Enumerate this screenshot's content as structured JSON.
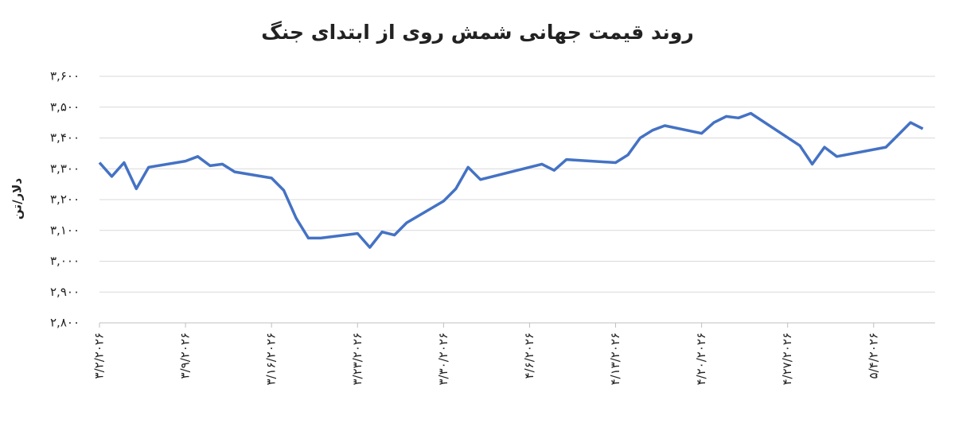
{
  "chart_data": {
    "type": "line",
    "title": "روند قیمت جهانی شمش روی از ابتدای جنگ",
    "y_label": "دلار/تن",
    "x": [
      "2026-03-02",
      "2026-03-03",
      "2026-03-04",
      "2026-03-05",
      "2026-03-06",
      "2026-03-09",
      "2026-03-10",
      "2026-03-11",
      "2026-03-12",
      "2026-03-13",
      "2026-03-16",
      "2026-03-17",
      "2026-03-18",
      "2026-03-19",
      "2026-03-20",
      "2026-03-23",
      "2026-03-24",
      "2026-03-25",
      "2026-03-26",
      "2026-03-27",
      "2026-03-30",
      "2026-03-31",
      "2026-04-01",
      "2026-04-02",
      "2026-04-07",
      "2026-04-08",
      "2026-04-09",
      "2026-04-13",
      "2026-04-14",
      "2026-04-15",
      "2026-04-16",
      "2026-04-17",
      "2026-04-20",
      "2026-04-21",
      "2026-04-22",
      "2026-04-23",
      "2026-04-24",
      "2026-04-28",
      "2026-04-29",
      "2026-04-30",
      "2026-05-01",
      "2026-05-05",
      "2026-05-06",
      "2026-05-07",
      "2026-05-08"
    ],
    "series": [
      {
        "color": "#4472c4",
        "values": [
          3320,
          3275,
          3320,
          3235,
          3305,
          3325,
          3340,
          3310,
          3315,
          3290,
          3270,
          3230,
          3140,
          3075,
          3075,
          3090,
          3045,
          3095,
          3085,
          3125,
          3195,
          3235,
          3305,
          3265,
          3315,
          3295,
          3330,
          3320,
          3345,
          3400,
          3425,
          3440,
          3415,
          3450,
          3470,
          3465,
          3480,
          3375,
          3315,
          3370,
          3340,
          3370,
          3410,
          3450,
          3430
        ]
      }
    ],
    "xlim": [
      "2026-03-02",
      "2026-05-09"
    ],
    "xticks": [
      {
        "value": "2026-03-02",
        "label": "۳/۲/۲۰۲۶"
      },
      {
        "value": "2026-03-09",
        "label": "۳/۹/۲۰۲۶"
      },
      {
        "value": "2026-03-16",
        "label": "۳/۱۶/۲۰۲۶"
      },
      {
        "value": "2026-03-23",
        "label": "۳/۲۳/۲۰۲۶"
      },
      {
        "value": "2026-03-30",
        "label": "۳/۳۰/۲۰۲۶"
      },
      {
        "value": "2026-04-06",
        "label": "۴/۶/۲۰۲۶"
      },
      {
        "value": "2026-04-13",
        "label": "۴/۱۳/۲۰۲۶"
      },
      {
        "value": "2026-04-20",
        "label": "۴/۲۰/۲۰۲۶"
      },
      {
        "value": "2026-04-27",
        "label": "۴/۲۷/۲۰۲۶"
      },
      {
        "value": "2026-05-04",
        "label": "۵/۴/۲۰۲۶"
      }
    ],
    "ylim": [
      2800,
      3600
    ],
    "yticks": [
      {
        "value": 2800,
        "label": "۲,۸۰۰"
      },
      {
        "value": 2900,
        "label": "۲,۹۰۰"
      },
      {
        "value": 3000,
        "label": "۳,۰۰۰"
      },
      {
        "value": 3100,
        "label": "۳,۱۰۰"
      },
      {
        "value": 3200,
        "label": "۳,۲۰۰"
      },
      {
        "value": 3300,
        "label": "۳,۳۰۰"
      },
      {
        "value": 3400,
        "label": "۳,۴۰۰"
      },
      {
        "value": 3500,
        "label": "۳,۵۰۰"
      },
      {
        "value": 3600,
        "label": "۳,۶۰۰"
      }
    ],
    "grid": true
  }
}
